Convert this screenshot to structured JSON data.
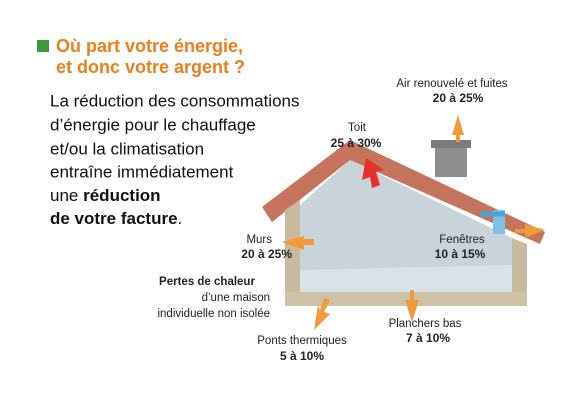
{
  "header": {
    "title_lines": [
      "Où part votre énergie,",
      "et donc votre argent ?"
    ]
  },
  "intro": {
    "lines": [
      "La réduction des consommations",
      "d’énergie pour le chauffage",
      "et/ou la climatisation",
      "entraîne immédiatement"
    ],
    "emphasis_prefix": "une",
    "emphasis_lines": [
      "réduction",
      "de votre facture"
    ],
    "suffix": "."
  },
  "caption": {
    "title": "Pertes de chaleur",
    "lines": [
      "d’une maison",
      "individuelle non isolée"
    ]
  },
  "losses": [
    {
      "label": "Air renouvelé et fuites",
      "range": "20 à 25%"
    },
    {
      "label": "Toit",
      "range": "25 à 30%"
    },
    {
      "label": "Murs",
      "range": "20 à 25%"
    },
    {
      "label": "Fenêtres",
      "range": "10 à 15%"
    },
    {
      "label": "Planchers bas",
      "range": "7 à 10%"
    },
    {
      "label": "Ponts thermiques",
      "range": "5 à 10%"
    }
  ]
}
